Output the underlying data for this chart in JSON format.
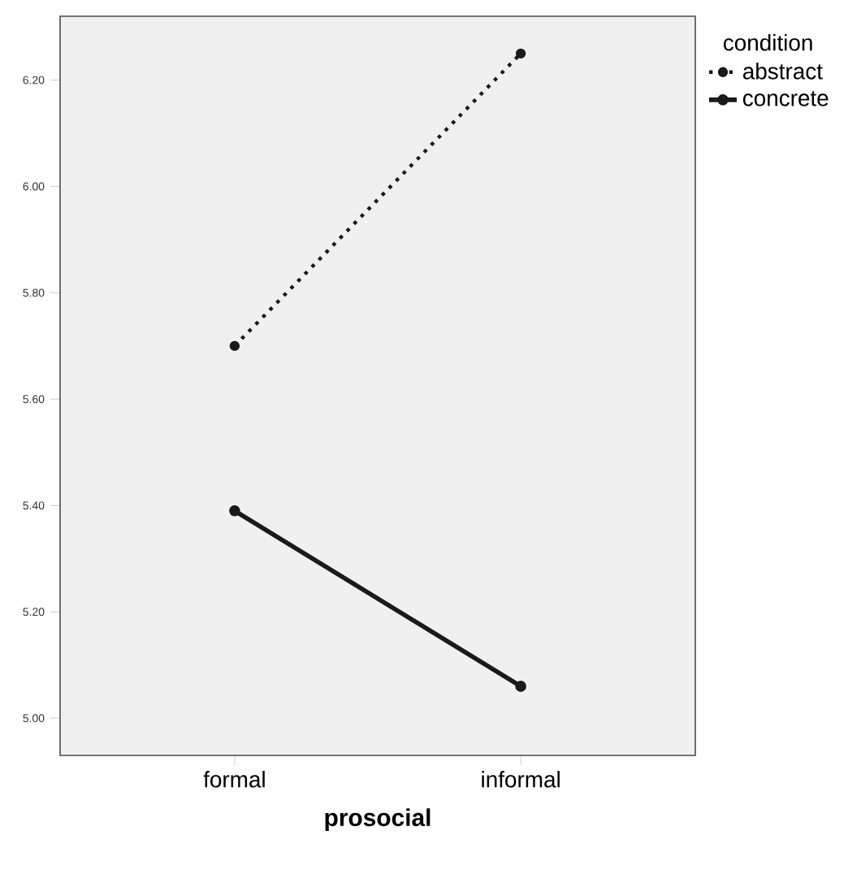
{
  "chart_data": {
    "type": "line",
    "xlabel": "prosocial",
    "legend_title": "condition",
    "categories": [
      "formal",
      "informal"
    ],
    "series": [
      {
        "name": "abstract",
        "color": "#1a1a1a",
        "line_style": "dotted",
        "values": [
          5.7,
          6.25
        ]
      },
      {
        "name": "concrete",
        "color": "#1a1a1a",
        "line_style": "solid",
        "values": [
          5.39,
          5.06
        ]
      }
    ],
    "ylim": [
      4.93,
      6.32
    ],
    "yticks": [
      {
        "value": 5.0,
        "label": "5.00"
      },
      {
        "value": 5.2,
        "label": "5.20"
      },
      {
        "value": 5.4,
        "label": "5.40"
      },
      {
        "value": 5.6,
        "label": "5.60"
      },
      {
        "value": 5.8,
        "label": "5.80"
      },
      {
        "value": 6.0,
        "label": "6.00"
      },
      {
        "value": 6.2,
        "label": "6.20"
      }
    ],
    "marker": "circle",
    "legend": "top right",
    "grid": false
  }
}
